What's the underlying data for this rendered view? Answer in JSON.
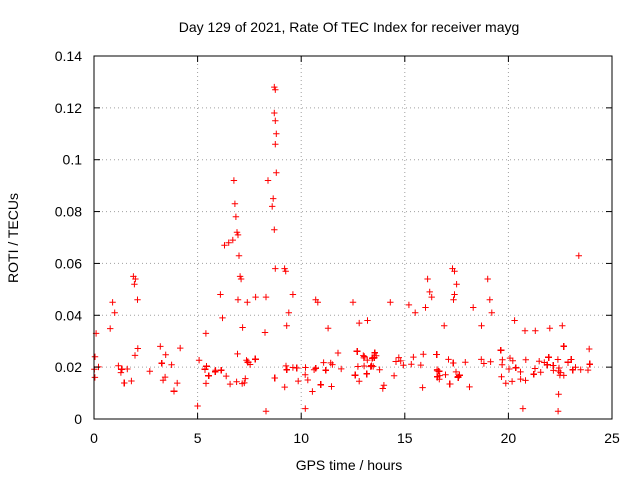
{
  "chart_data": {
    "type": "scatter",
    "title": "Day 129 of 2021, Rate Of TEC Index for receiver mayg",
    "xlabel": "GPS time / hours",
    "ylabel": "ROTI / TECUs",
    "xlim": [
      0,
      25
    ],
    "ylim": [
      0,
      0.14
    ],
    "x_ticks": [
      0,
      5,
      10,
      15,
      20,
      25
    ],
    "x_tick_labels": [
      "0",
      "5",
      "10",
      "15",
      "20",
      "25"
    ],
    "y_ticks": [
      0,
      0.02,
      0.04,
      0.06,
      0.08,
      0.1,
      0.12,
      0.14
    ],
    "y_tick_labels": [
      "0",
      "0.02",
      "0.04",
      "0.06",
      "0.08",
      "0.1",
      "0.12",
      "0.14"
    ],
    "grid": true,
    "marker": "+",
    "series_color": "#ff0000",
    "data_gap_hours": [
      4.25,
      4.95
    ],
    "dense_band": {
      "x_range": [
        0,
        24
      ],
      "y_range": [
        0.004,
        0.03
      ]
    },
    "notable_points": [
      [
        0.05,
        0.024
      ],
      [
        0.1,
        0.033
      ],
      [
        0.9,
        0.045
      ],
      [
        1.0,
        0.041
      ],
      [
        1.9,
        0.055
      ],
      [
        2.0,
        0.054
      ],
      [
        1.95,
        0.052
      ],
      [
        2.1,
        0.046
      ],
      [
        3.2,
        0.028
      ],
      [
        5.4,
        0.033
      ],
      [
        6.3,
        0.067
      ],
      [
        6.5,
        0.068
      ],
      [
        6.7,
        0.069
      ],
      [
        6.75,
        0.092
      ],
      [
        6.8,
        0.083
      ],
      [
        6.85,
        0.078
      ],
      [
        6.9,
        0.072
      ],
      [
        6.95,
        0.071
      ],
      [
        7.0,
        0.063
      ],
      [
        7.05,
        0.055
      ],
      [
        7.1,
        0.054
      ],
      [
        6.95,
        0.046
      ],
      [
        6.1,
        0.048
      ],
      [
        6.2,
        0.039
      ],
      [
        7.4,
        0.045
      ],
      [
        7.8,
        0.047
      ],
      [
        8.4,
        0.092
      ],
      [
        8.6,
        0.082
      ],
      [
        8.65,
        0.085
      ],
      [
        8.7,
        0.073
      ],
      [
        8.75,
        0.058
      ],
      [
        8.8,
        0.095
      ],
      [
        8.7,
        0.128
      ],
      [
        8.75,
        0.127
      ],
      [
        8.7,
        0.118
      ],
      [
        8.75,
        0.115
      ],
      [
        8.8,
        0.11
      ],
      [
        8.75,
        0.106
      ],
      [
        8.3,
        0.047
      ],
      [
        9.2,
        0.058
      ],
      [
        9.25,
        0.057
      ],
      [
        9.4,
        0.041
      ],
      [
        9.6,
        0.048
      ],
      [
        9.3,
        0.036
      ],
      [
        10.7,
        0.046
      ],
      [
        10.8,
        0.045
      ],
      [
        11.3,
        0.035
      ],
      [
        12.5,
        0.045
      ],
      [
        12.8,
        0.037
      ],
      [
        13.2,
        0.038
      ],
      [
        14.3,
        0.045
      ],
      [
        15.2,
        0.044
      ],
      [
        15.5,
        0.041
      ],
      [
        16.1,
        0.054
      ],
      [
        16.2,
        0.049
      ],
      [
        16.3,
        0.047
      ],
      [
        16.0,
        0.043
      ],
      [
        17.3,
        0.058
      ],
      [
        17.4,
        0.057
      ],
      [
        17.5,
        0.052
      ],
      [
        17.4,
        0.048
      ],
      [
        17.35,
        0.046
      ],
      [
        16.9,
        0.036
      ],
      [
        18.3,
        0.043
      ],
      [
        18.7,
        0.036
      ],
      [
        19.0,
        0.054
      ],
      [
        19.1,
        0.046
      ],
      [
        19.2,
        0.041
      ],
      [
        20.3,
        0.038
      ],
      [
        20.8,
        0.034
      ],
      [
        21.3,
        0.034
      ],
      [
        22.0,
        0.035
      ],
      [
        22.6,
        0.036
      ],
      [
        23.4,
        0.063
      ],
      [
        23.9,
        0.027
      ],
      [
        22.4,
        0.003
      ],
      [
        8.3,
        0.003
      ],
      [
        10.2,
        0.004
      ],
      [
        20.7,
        0.004
      ],
      [
        5.0,
        0.005
      ]
    ]
  }
}
